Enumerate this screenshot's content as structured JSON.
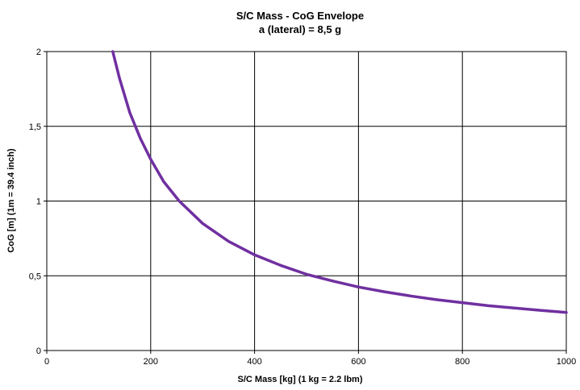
{
  "chart_data": {
    "type": "line",
    "title": "S/C Mass - CoG Envelope",
    "subtitle": "a (lateral) = 8,5 g",
    "xlabel": "S/C Mass [kg]  (1 kg = 2.2 lbm)",
    "ylabel": "CoG [m]  (1m = 39.4 inch)",
    "xlim": [
      0,
      1000
    ],
    "ylim": [
      0,
      2
    ],
    "grid": true,
    "x_ticks": [
      "0",
      "200",
      "400",
      "600",
      "800",
      "1000"
    ],
    "y_ticks": [
      "0",
      "0,5",
      "1",
      "1,5",
      "2"
    ],
    "series": [
      {
        "color": "#7030a0",
        "x": [
          127,
          140,
          160,
          180,
          200,
          225,
          255,
          300,
          350,
          400,
          450,
          500,
          550,
          600,
          650,
          700,
          750,
          800,
          850,
          900,
          950,
          1000
        ],
        "y": [
          2.0,
          1.82,
          1.59,
          1.42,
          1.28,
          1.13,
          1.0,
          0.85,
          0.73,
          0.64,
          0.57,
          0.51,
          0.465,
          0.425,
          0.393,
          0.365,
          0.34,
          0.32,
          0.3,
          0.284,
          0.269,
          0.255
        ]
      }
    ]
  }
}
